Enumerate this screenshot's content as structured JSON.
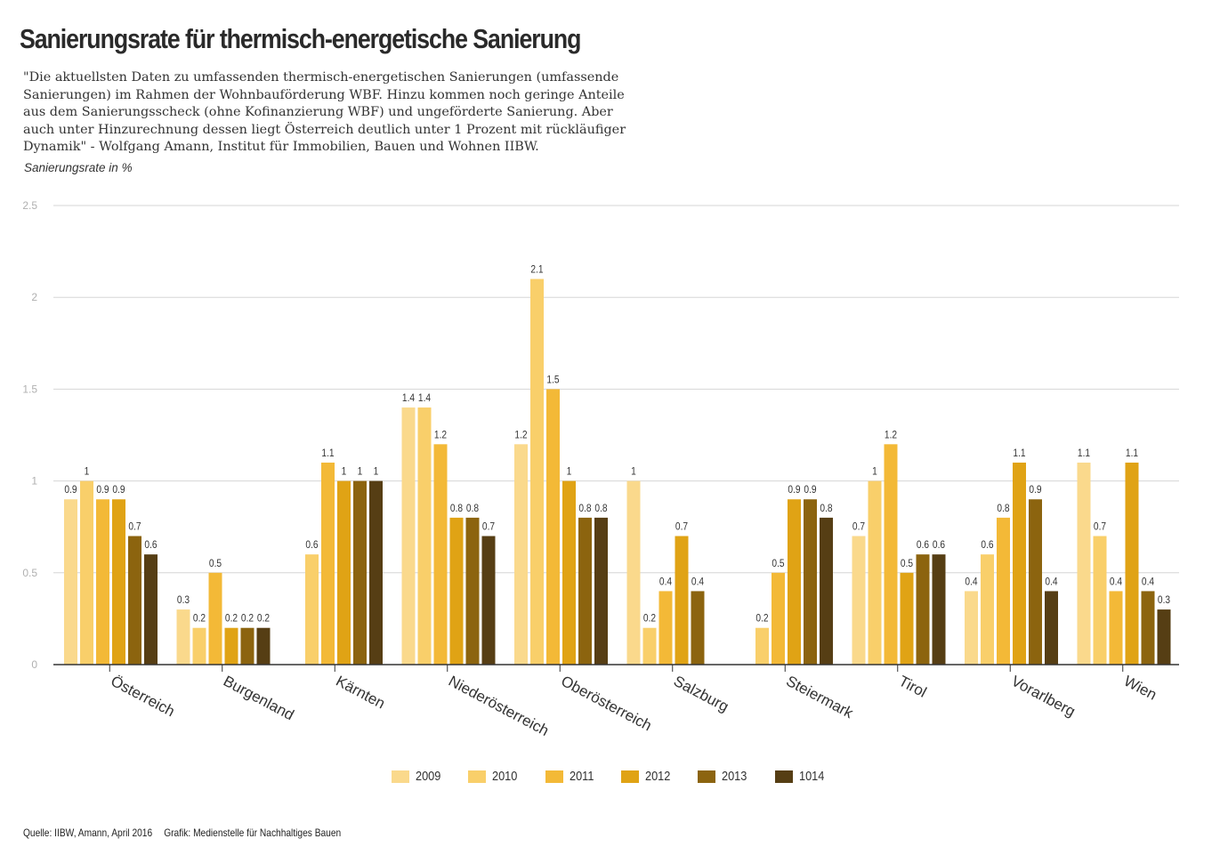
{
  "header": {
    "title": "Sanierungsrate für thermisch-energetische Sanierung",
    "subtitle": "\"Die aktuellsten Daten zu umfassenden thermisch-energetischen Sanierungen (umfassende Sanierungen) im Rahmen der Wohnbauförderung WBF. Hinzu kommen noch geringe Anteile aus dem Sanierungsscheck (ohne Kofinanzierung WBF) und ungeförderte Sanierung. Aber auch unter Hinzurechnung dessen liegt Österreich deutlich unter 1 Prozent mit rückläufiger Dynamik\" - Wolfgang Amann, Institut für Immobilien, Bauen und Wohnen IIBW.",
    "unit_label": "Sanierungsrate in %"
  },
  "footer": {
    "source": "Quelle: IIBW, Amann, April 2016",
    "credit": "Grafik: Medienstelle für Nachhaltiges Bauen"
  },
  "chart_data": {
    "type": "bar",
    "title": "Sanierungsrate für thermisch-energetische Sanierung",
    "xlabel": "",
    "ylabel": "Sanierungsrate in %",
    "ylim": [
      0,
      2.5
    ],
    "yticks": [
      "0",
      "0.5",
      "1",
      "1.5",
      "2",
      "2.5"
    ],
    "grid": true,
    "legend_position": "bottom-center",
    "categories": [
      "Österreich",
      "Burgenland",
      "Kärnten",
      "Niederösterreich",
      "Oberösterreich",
      "Salzburg",
      "Steiermark",
      "Tirol",
      "Vorarlberg",
      "Wien"
    ],
    "series": [
      {
        "name": "2009",
        "color": "#fad98c",
        "values": [
          0.9,
          0.3,
          null,
          1.4,
          1.2,
          1,
          null,
          0.7,
          0.4,
          1.1
        ]
      },
      {
        "name": "2010",
        "color": "#f9cf6a",
        "values": [
          1,
          0.2,
          0.6,
          1.4,
          2.1,
          0.2,
          0.2,
          1,
          0.6,
          0.7
        ]
      },
      {
        "name": "2011",
        "color": "#f3b937",
        "values": [
          0.9,
          0.5,
          1.1,
          1.2,
          1.5,
          0.4,
          0.5,
          1.2,
          0.8,
          0.4
        ]
      },
      {
        "name": "2012",
        "color": "#e0a315",
        "values": [
          0.9,
          0.2,
          1,
          0.8,
          1,
          0.7,
          0.9,
          0.5,
          1.1,
          1.1
        ]
      },
      {
        "name": "2013",
        "color": "#8c640f",
        "values": [
          0.7,
          0.2,
          1,
          0.8,
          0.8,
          0.4,
          0.9,
          0.6,
          0.9,
          0.4
        ]
      },
      {
        "name": "1014",
        "color": "#563e14",
        "values": [
          0.6,
          0.2,
          1,
          0.7,
          0.8,
          null,
          0.8,
          0.6,
          0.4,
          0.3
        ]
      }
    ]
  }
}
